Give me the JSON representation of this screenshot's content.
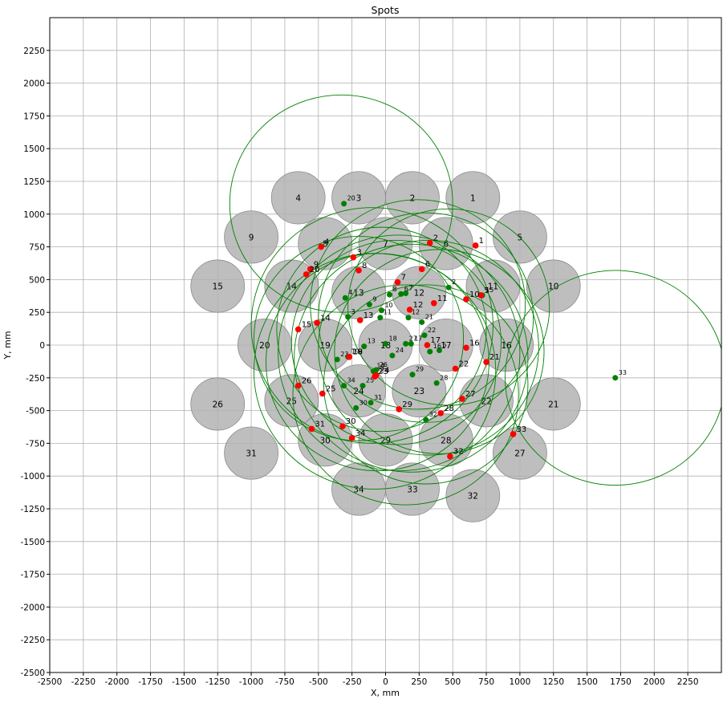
{
  "chart_data": {
    "type": "scatter",
    "title": "Spots",
    "xlabel": "X, mm",
    "ylabel": "Y, mm",
    "xlim": [
      -2500,
      2500
    ],
    "ylim": [
      -2500,
      2500
    ],
    "xticks": [
      -2500,
      -2250,
      -2000,
      -1750,
      -1500,
      -1250,
      -1000,
      -750,
      -500,
      -250,
      0,
      250,
      500,
      750,
      1000,
      1250,
      1500,
      1750,
      2000,
      2250
    ],
    "yticks": [
      -2500,
      -2250,
      -2000,
      -1750,
      -1500,
      -1250,
      -1000,
      -750,
      -500,
      -250,
      0,
      250,
      500,
      750,
      1000,
      1250,
      1500,
      1750,
      2000,
      2250
    ],
    "grid": true,
    "colors": {
      "gray_spot": "#b3b3b3",
      "gray_edge": "#8c8c8c",
      "green": "#008000",
      "red": "#ff0000",
      "grid": "#b0b0b0"
    },
    "gray_spots": {
      "radius": 200,
      "points": [
        {
          "label": "1",
          "x": 650,
          "y": 1125
        },
        {
          "label": "2",
          "x": 200,
          "y": 1125
        },
        {
          "label": "3",
          "x": -200,
          "y": 1125
        },
        {
          "label": "4",
          "x": -650,
          "y": 1125
        },
        {
          "label": "5",
          "x": 1000,
          "y": 825
        },
        {
          "label": "6",
          "x": 450,
          "y": 775
        },
        {
          "label": "7",
          "x": 0,
          "y": 775
        },
        {
          "label": "8",
          "x": -450,
          "y": 775
        },
        {
          "label": "9",
          "x": -1000,
          "y": 825
        },
        {
          "label": "10",
          "x": 1250,
          "y": 450
        },
        {
          "label": "11",
          "x": 800,
          "y": 450
        },
        {
          "label": "12",
          "x": 250,
          "y": 400
        },
        {
          "label": "13",
          "x": -200,
          "y": 400
        },
        {
          "label": "14",
          "x": -700,
          "y": 450
        },
        {
          "label": "15",
          "x": -1250,
          "y": 450
        },
        {
          "label": "16",
          "x": 900,
          "y": 0
        },
        {
          "label": "17",
          "x": 450,
          "y": 0
        },
        {
          "label": "18",
          "x": 0,
          "y": 0
        },
        {
          "label": "19",
          "x": -450,
          "y": 0
        },
        {
          "label": "20",
          "x": -900,
          "y": 0
        },
        {
          "label": "21",
          "x": 1250,
          "y": -450
        },
        {
          "label": "22",
          "x": 750,
          "y": -425
        },
        {
          "label": "23",
          "x": 250,
          "y": -350
        },
        {
          "label": "24",
          "x": -200,
          "y": -350
        },
        {
          "label": "25",
          "x": -700,
          "y": -425
        },
        {
          "label": "26",
          "x": -1250,
          "y": -450
        },
        {
          "label": "27",
          "x": 1000,
          "y": -825
        },
        {
          "label": "28",
          "x": 450,
          "y": -725
        },
        {
          "label": "29",
          "x": 0,
          "y": -725
        },
        {
          "label": "30",
          "x": -450,
          "y": -725
        },
        {
          "label": "31",
          "x": -1000,
          "y": -825
        },
        {
          "label": "32",
          "x": 650,
          "y": -1150
        },
        {
          "label": "33",
          "x": 200,
          "y": -1100
        },
        {
          "label": "34",
          "x": -200,
          "y": -1100
        }
      ]
    },
    "green_spots": {
      "points": [
        {
          "label": "1",
          "x": 720,
          "y": 380
        },
        {
          "label": "2",
          "x": 470,
          "y": 440
        },
        {
          "label": "3",
          "x": -280,
          "y": 215
        },
        {
          "label": "4",
          "x": -300,
          "y": 360
        },
        {
          "label": "5",
          "x": 400,
          "y": -40
        },
        {
          "label": "6",
          "x": 115,
          "y": 390
        },
        {
          "label": "7",
          "x": 150,
          "y": 395
        },
        {
          "label": "8",
          "x": 30,
          "y": 385
        },
        {
          "label": "9",
          "x": -120,
          "y": 310
        },
        {
          "label": "10",
          "x": -30,
          "y": 265
        },
        {
          "label": "11",
          "x": -40,
          "y": 210
        },
        {
          "label": "12",
          "x": 170,
          "y": 210
        },
        {
          "label": "13",
          "x": -160,
          "y": -10
        },
        {
          "label": "14",
          "x": -90,
          "y": -200
        },
        {
          "label": "15",
          "x": 720,
          "y": 380
        },
        {
          "label": "16",
          "x": 330,
          "y": -50
        },
        {
          "label": "17",
          "x": 190,
          "y": 10
        },
        {
          "label": "18",
          "x": 0,
          "y": 10
        },
        {
          "label": "19",
          "x": -280,
          "y": -90
        },
        {
          "label": "20",
          "x": -310,
          "y": 1080
        },
        {
          "label": "21",
          "x": 270,
          "y": 175
        },
        {
          "label": "22",
          "x": 290,
          "y": 75
        },
        {
          "label": "23",
          "x": -360,
          "y": -110
        },
        {
          "label": "24",
          "x": 50,
          "y": -80
        },
        {
          "label": "25",
          "x": -170,
          "y": -310
        },
        {
          "label": "26",
          "x": -70,
          "y": -190
        },
        {
          "label": "27",
          "x": 150,
          "y": 10
        },
        {
          "label": "28",
          "x": 380,
          "y": -290
        },
        {
          "label": "29",
          "x": 200,
          "y": -225
        },
        {
          "label": "30",
          "x": -220,
          "y": -480
        },
        {
          "label": "31",
          "x": -110,
          "y": -440
        },
        {
          "label": "32",
          "x": 300,
          "y": -570
        },
        {
          "label": "33",
          "x": 1710,
          "y": -250
        },
        {
          "label": "34",
          "x": -310,
          "y": -310
        }
      ],
      "circles": [
        {
          "x": -330,
          "y": 1080,
          "r": 830
        },
        {
          "x": 1710,
          "y": -250,
          "r": 820
        },
        {
          "x": 300,
          "y": 210,
          "r": 800
        },
        {
          "x": 80,
          "y": 20,
          "r": 780
        },
        {
          "x": 320,
          "y": -20,
          "r": 820
        },
        {
          "x": 100,
          "y": -60,
          "r": 900
        },
        {
          "x": 190,
          "y": -100,
          "r": 870
        },
        {
          "x": -60,
          "y": -130,
          "r": 830
        },
        {
          "x": 400,
          "y": -50,
          "r": 780
        },
        {
          "x": 300,
          "y": -300,
          "r": 760
        },
        {
          "x": -80,
          "y": -200,
          "r": 900
        },
        {
          "x": -30,
          "y": 120,
          "r": 780
        },
        {
          "x": 240,
          "y": 310,
          "r": 800
        },
        {
          "x": -200,
          "y": 50,
          "r": 780
        },
        {
          "x": 470,
          "y": 290,
          "r": 750
        },
        {
          "x": 150,
          "y": -380,
          "r": 840
        },
        {
          "x": -100,
          "y": 150,
          "r": 900
        }
      ]
    },
    "red_spots": {
      "points": [
        {
          "label": "1",
          "x": 670,
          "y": 760
        },
        {
          "label": "2",
          "x": 330,
          "y": 780
        },
        {
          "label": "3",
          "x": -240,
          "y": 670
        },
        {
          "label": "4",
          "x": -480,
          "y": 750
        },
        {
          "label": "5",
          "x": 710,
          "y": 380
        },
        {
          "label": "6",
          "x": 270,
          "y": 580
        },
        {
          "label": "7",
          "x": 90,
          "y": 480
        },
        {
          "label": "8",
          "x": -200,
          "y": 570
        },
        {
          "label": "9",
          "x": -560,
          "y": 580
        },
        {
          "label": "10",
          "x": 600,
          "y": 350
        },
        {
          "label": "11",
          "x": 360,
          "y": 320
        },
        {
          "label": "12",
          "x": 180,
          "y": 270
        },
        {
          "label": "13",
          "x": -190,
          "y": 190
        },
        {
          "label": "14",
          "x": -510,
          "y": 170
        },
        {
          "label": "15",
          "x": -650,
          "y": 120
        },
        {
          "label": "16",
          "x": 600,
          "y": -20
        },
        {
          "label": "17",
          "x": 310,
          "y": 0
        },
        {
          "label": "18",
          "x": -270,
          "y": -90
        },
        {
          "label": "19",
          "x": -270,
          "y": -90
        },
        {
          "label": "20",
          "x": -590,
          "y": 540
        },
        {
          "label": "21",
          "x": 750,
          "y": -130
        },
        {
          "label": "22",
          "x": 520,
          "y": -180
        },
        {
          "label": "23",
          "x": -80,
          "y": -240
        },
        {
          "label": "24",
          "x": -70,
          "y": -230
        },
        {
          "label": "25",
          "x": -470,
          "y": -370
        },
        {
          "label": "26",
          "x": -650,
          "y": -310
        },
        {
          "label": "27",
          "x": 570,
          "y": -410
        },
        {
          "label": "28",
          "x": 410,
          "y": -520
        },
        {
          "label": "29",
          "x": 100,
          "y": -490
        },
        {
          "label": "30",
          "x": -320,
          "y": -620
        },
        {
          "label": "31",
          "x": -550,
          "y": -640
        },
        {
          "label": "32",
          "x": 480,
          "y": -850
        },
        {
          "label": "33",
          "x": 950,
          "y": -680
        },
        {
          "label": "34",
          "x": -250,
          "y": -710
        }
      ]
    }
  }
}
